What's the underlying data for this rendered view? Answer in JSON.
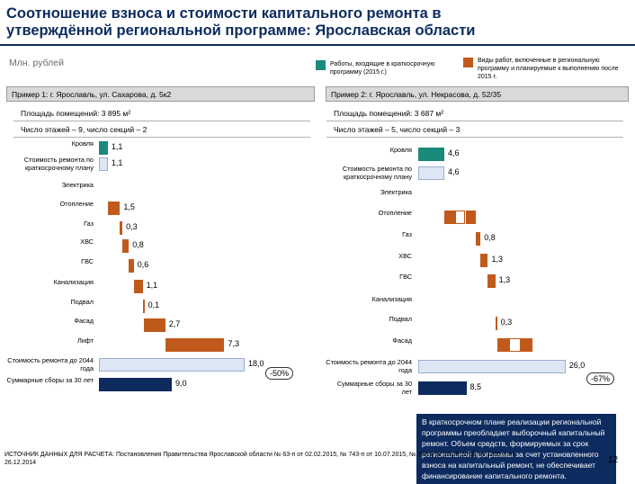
{
  "title": "Соотношение взноса и стоимости капитального ремонта в утверждённой региональной программе: Ярославская области",
  "unit": "Млн. рублей",
  "colors": {
    "teal": "#1a8a7a",
    "orange": "#c05a1c",
    "navy": "#0d2b5e",
    "light": "#dde6f5",
    "panel": "#d9d9d9"
  },
  "legend": [
    {
      "label": "Работы, входящие в краткосрочную программу (2015 г.)",
      "color": "#1a8a7a"
    },
    {
      "label": "Виды работ, включенные в региональную программу и планируемые к выполнению после 2015 г.",
      "color": "#c05a1c"
    }
  ],
  "note": "В краткосрочном плане реализации региональной программы преобладает выборочный капитальный ремонт. Объем средств, формируемых за срок региональной программы за счет установленного взноса на капитальный ремонт, не обеспечивает финансирование капитального ремонта.",
  "source": "ИСТОЧНИК ДАННЫХ ДЛЯ РАСЧЕТА: Постановления Правительства Ярославской области № 63-п от 02.02.2015, № 743-п от 10.07.2015, № 748-п от 28.06.2013, № 1365-п от 26.12.2014",
  "page_number": "12",
  "chart_data": [
    {
      "type": "bar",
      "header": "Пример 1: г. Ярославль, ул. Сахарова, д. 5к2",
      "area": "Площадь помещений: 3 895 м²",
      "floors": "Число этажей – 9, число секций – 2",
      "categories": [
        "Кровля",
        "Стоимость ремонта по краткосрочному плану",
        "Электрика",
        "Отопление",
        "Газ",
        "ХВС",
        "ГВС",
        "Канализация",
        "Подвал",
        "Фасад",
        "Лифт",
        "Стоимость ремонта до 2044 года",
        "Суммарные сборы за 30 лет"
      ],
      "values": [
        1.1,
        1.1,
        null,
        1.5,
        0.3,
        0.8,
        0.6,
        1.1,
        0.1,
        2.7,
        7.3,
        18.0,
        9.0
      ],
      "labels": [
        "1,1",
        "1,1",
        "",
        "1,5",
        "0,3",
        "0,8",
        "0,6",
        "1,1",
        "0,1",
        "2,7",
        "7,3",
        "18,0",
        "9,0"
      ],
      "bar_kinds": [
        "teal",
        "light",
        "none",
        "orange",
        "orange",
        "orange",
        "orange",
        "orange",
        "orange",
        "orange",
        "orange",
        "light",
        "navy"
      ],
      "gap_label": "-50%"
    },
    {
      "type": "bar",
      "header": "Пример 2: г. Ярославль, ул. Некрасова, д. 52/35",
      "area": "Площадь помещений: 3 687 м²",
      "floors": "Число этажей – 5, число секций – 3",
      "categories": [
        "Кровля",
        "Стоимость ремонта по краткосрочному плану",
        "Электрика",
        "Отопление",
        "Газ",
        "ХВС",
        "ГВС",
        "Канализация",
        "Подвал",
        "Фасад",
        "Стоимость ремонта до 2044 года",
        "Суммарные сборы за 30 лет"
      ],
      "values": [
        4.6,
        4.6,
        null,
        5.6,
        0.8,
        1.3,
        1.3,
        null,
        0.3,
        6.3,
        26.0,
        8.5
      ],
      "labels": [
        "4,6",
        "4,6",
        "",
        "",
        "0,8",
        "1,3",
        "1,3",
        "",
        "0,3",
        "",
        "26,0",
        "8,5"
      ],
      "bar_kinds": [
        "teal",
        "light",
        "none",
        "split",
        "orange",
        "orange",
        "orange",
        "none",
        "orange",
        "split",
        "light",
        "navy"
      ],
      "gap_label": "-67%"
    }
  ]
}
